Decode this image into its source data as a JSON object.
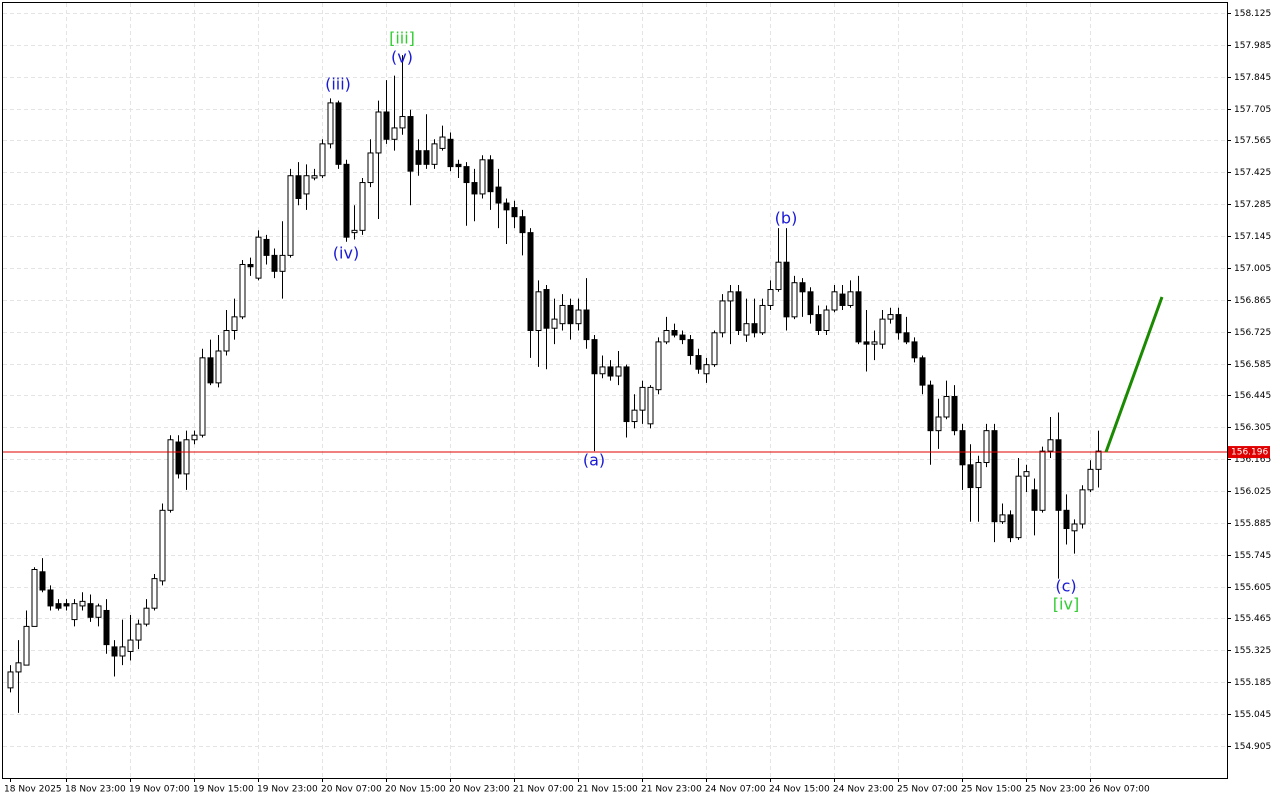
{
  "chart_data": {
    "type": "candlestick",
    "categories": [
      "18 Nov 2025",
      null,
      null,
      null,
      null,
      null,
      null,
      "18 Nov 23:00",
      null,
      null,
      null,
      null,
      null,
      null,
      null,
      "19 Nov 07:00",
      null,
      null,
      null,
      null,
      null,
      null,
      null,
      "19 Nov 15:00",
      null,
      null,
      null,
      null,
      null,
      null,
      null,
      "19 Nov 23:00",
      null,
      null,
      null,
      null,
      null,
      null,
      null,
      "20 Nov 07:00",
      null,
      null,
      null,
      null,
      null,
      null,
      null,
      "20 Nov 15:00",
      null,
      null,
      null,
      null,
      null,
      null,
      null,
      "20 Nov 23:00",
      null,
      null,
      null,
      null,
      null,
      null,
      null,
      "21 Nov 07:00",
      null,
      null,
      null,
      null,
      null,
      null,
      null,
      "21 Nov 15:00",
      null,
      null,
      null,
      null,
      null,
      null,
      null,
      "21 Nov 23:00",
      null,
      null,
      null,
      null,
      null,
      null,
      null,
      "24 Nov 07:00",
      null,
      null,
      null,
      null,
      null,
      null,
      null,
      "24 Nov 15:00",
      null,
      null,
      null,
      null,
      null,
      null,
      null,
      "24 Nov 23:00",
      null,
      null,
      null,
      null,
      null,
      null,
      null,
      "25 Nov 07:00",
      null,
      null,
      null,
      null,
      null,
      null,
      null,
      "25 Nov 15:00",
      null,
      null,
      null,
      null,
      null,
      null,
      null,
      "25 Nov 23:00",
      null,
      null,
      null,
      null,
      null,
      null,
      null,
      "26 Nov 07:00",
      null
    ],
    "open": [
      155.16,
      155.23,
      155.26,
      155.43,
      155.67,
      155.59,
      155.53,
      155.53,
      155.46,
      155.52,
      155.53,
      155.47,
      155.5,
      155.34,
      155.3,
      155.32,
      155.37,
      155.44,
      155.51,
      155.63,
      155.94,
      156.24,
      156.1,
      156.25,
      156.27,
      156.61,
      156.5,
      156.64,
      156.73,
      156.79,
      157.02,
      156.96,
      157.13,
      157.06,
      156.99,
      157.06,
      157.41,
      157.33,
      157.4,
      157.41,
      157.55,
      157.73,
      157.46,
      157.16,
      157.17,
      157.38,
      157.51,
      157.69,
      157.57,
      157.62,
      157.67,
      157.52,
      157.52,
      157.46,
      157.53,
      157.57,
      157.46,
      157.45,
      157.38,
      157.33,
      157.48,
      157.36,
      157.29,
      157.27,
      157.23,
      157.16,
      156.73,
      156.91,
      156.74,
      156.76,
      156.84,
      156.76,
      156.82,
      156.69,
      156.54,
      156.57,
      156.53,
      156.57,
      156.33,
      156.38,
      156.32,
      156.47,
      156.68,
      156.73,
      156.71,
      156.69,
      156.62,
      156.54,
      156.58,
      156.72,
      156.86,
      156.9,
      156.71,
      156.76,
      156.72,
      156.84,
      156.91,
      157.03,
      156.79,
      156.94,
      156.9,
      156.8,
      156.73,
      156.82,
      156.89,
      156.84,
      156.9,
      156.68,
      156.67,
      156.67,
      156.78,
      156.8,
      156.72,
      156.68,
      156.61,
      156.49,
      156.29,
      156.35,
      156.44,
      156.29,
      156.14,
      156.04,
      156.15,
      156.29,
      155.89,
      155.92,
      155.82,
      156.09,
      156.03,
      155.94,
      156.2,
      156.25,
      155.94,
      155.85,
      155.88,
      156.03,
      156.12
    ],
    "high": [
      155.26,
      155.37,
      155.5,
      155.69,
      155.73,
      155.61,
      155.55,
      155.55,
      155.55,
      155.58,
      155.57,
      155.53,
      155.55,
      155.37,
      155.46,
      155.48,
      155.46,
      155.55,
      155.66,
      155.97,
      156.27,
      156.27,
      156.29,
      156.29,
      156.65,
      156.69,
      156.71,
      156.82,
      156.87,
      157.04,
      157.05,
      157.17,
      157.15,
      157.09,
      157.21,
      157.44,
      157.47,
      157.46,
      157.44,
      157.57,
      157.75,
      157.74,
      157.48,
      157.28,
      157.4,
      157.57,
      157.74,
      157.83,
      157.85,
      157.94,
      157.7,
      157.57,
      157.68,
      157.57,
      157.63,
      157.6,
      157.48,
      157.47,
      157.44,
      157.5,
      157.5,
      157.44,
      157.31,
      157.3,
      157.26,
      157.18,
      156.95,
      156.93,
      156.87,
      156.89,
      156.87,
      156.87,
      156.96,
      156.71,
      156.62,
      156.6,
      156.64,
      156.58,
      156.45,
      156.51,
      156.49,
      156.7,
      156.79,
      156.76,
      156.73,
      156.71,
      156.65,
      156.61,
      156.73,
      156.89,
      156.93,
      156.93,
      156.87,
      156.87,
      156.87,
      156.95,
      157.18,
      157.18,
      156.97,
      156.96,
      156.92,
      156.84,
      156.84,
      156.93,
      156.93,
      156.95,
      156.97,
      156.82,
      156.73,
      156.82,
      156.83,
      156.83,
      156.79,
      156.7,
      156.62,
      156.51,
      156.43,
      156.51,
      156.49,
      156.32,
      156.23,
      156.18,
      156.32,
      156.32,
      155.97,
      155.94,
      156.17,
      156.14,
      156.08,
      156.22,
      156.35,
      156.37,
      156.01,
      155.9,
      156.05,
      156.16,
      156.29
    ],
    "low": [
      155.14,
      155.05,
      155.26,
      155.43,
      155.58,
      155.5,
      155.5,
      155.5,
      155.43,
      155.5,
      155.45,
      155.43,
      155.31,
      155.21,
      155.26,
      155.28,
      155.33,
      155.43,
      155.5,
      155.61,
      155.93,
      156.08,
      156.03,
      156.23,
      156.26,
      156.49,
      156.48,
      156.62,
      156.69,
      156.78,
      156.97,
      156.95,
      157.02,
      156.96,
      156.87,
      157.05,
      157.28,
      157.26,
      157.39,
      157.4,
      157.53,
      157.44,
      157.12,
      157.13,
      157.15,
      157.36,
      157.22,
      157.55,
      157.52,
      157.59,
      157.28,
      157.41,
      157.44,
      157.44,
      157.52,
      157.43,
      157.4,
      157.19,
      157.21,
      157.31,
      157.26,
      157.18,
      157.11,
      157.18,
      157.06,
      156.61,
      156.57,
      156.56,
      156.67,
      156.73,
      156.69,
      156.73,
      156.65,
      156.2,
      156.52,
      156.51,
      156.49,
      156.26,
      156.3,
      156.32,
      156.3,
      156.45,
      156.67,
      156.7,
      156.67,
      156.58,
      156.54,
      156.5,
      156.57,
      156.7,
      156.67,
      156.71,
      156.68,
      156.7,
      156.71,
      156.82,
      156.9,
      156.73,
      156.78,
      156.79,
      156.76,
      156.71,
      156.71,
      156.81,
      156.82,
      156.83,
      156.67,
      156.55,
      156.6,
      156.65,
      156.76,
      156.69,
      156.67,
      156.59,
      156.45,
      156.14,
      156.21,
      156.34,
      156.27,
      156.03,
      155.89,
      155.89,
      156.13,
      155.8,
      155.88,
      155.8,
      155.81,
      156.02,
      155.83,
      155.93,
      156.17,
      155.64,
      155.79,
      155.75,
      155.86,
      156.02,
      156.04
    ],
    "close": [
      155.23,
      155.27,
      155.43,
      155.68,
      155.59,
      155.52,
      155.51,
      155.52,
      155.53,
      155.54,
      155.47,
      155.52,
      155.35,
      155.3,
      155.34,
      155.37,
      155.44,
      155.51,
      155.64,
      155.94,
      156.25,
      156.1,
      156.25,
      156.27,
      156.61,
      156.5,
      156.64,
      156.73,
      156.79,
      157.02,
      157.01,
      157.14,
      157.06,
      156.99,
      157.06,
      157.41,
      157.31,
      157.41,
      157.41,
      157.55,
      157.73,
      157.46,
      157.14,
      157.17,
      157.38,
      157.51,
      157.69,
      157.57,
      157.62,
      157.67,
      157.43,
      157.46,
      157.46,
      157.55,
      157.58,
      157.45,
      157.45,
      157.38,
      157.33,
      157.48,
      157.34,
      157.29,
      157.26,
      157.23,
      157.16,
      156.73,
      156.9,
      156.74,
      156.78,
      156.84,
      156.76,
      156.82,
      156.69,
      156.54,
      156.57,
      156.53,
      156.57,
      156.33,
      156.38,
      156.48,
      156.48,
      156.68,
      156.73,
      156.71,
      156.69,
      156.62,
      156.56,
      156.58,
      156.72,
      156.86,
      156.9,
      156.73,
      156.76,
      156.72,
      156.84,
      156.91,
      157.03,
      156.79,
      156.94,
      156.9,
      156.8,
      156.73,
      156.82,
      156.9,
      156.84,
      156.9,
      156.68,
      156.67,
      156.68,
      156.78,
      156.8,
      156.72,
      156.68,
      156.61,
      156.49,
      156.29,
      156.35,
      156.44,
      156.29,
      156.14,
      156.04,
      156.15,
      156.29,
      155.89,
      155.92,
      155.82,
      156.09,
      156.11,
      155.94,
      156.2,
      156.25,
      155.94,
      155.86,
      155.88,
      156.03,
      156.12,
      156.2
    ],
    "bull_color": "#ffffff",
    "bear_color": "#000000",
    "ylim": [
      154.764,
      158.182
    ],
    "yticks": [
      158.125,
      157.985,
      157.845,
      157.705,
      157.565,
      157.425,
      157.285,
      157.145,
      157.005,
      156.865,
      156.725,
      156.585,
      156.445,
      156.305,
      156.165,
      156.025,
      155.885,
      155.745,
      155.605,
      155.465,
      155.325,
      155.185,
      155.045,
      154.905
    ],
    "grid": true,
    "price_line": {
      "value": 156.196,
      "color": "#e00000"
    },
    "forecast": {
      "values": [
        156.196,
        156.877
      ],
      "color": "#1a8a00"
    },
    "annotations": [
      {
        "text": "[iii]",
        "color": "#33cc33"
      },
      {
        "text": "(v)",
        "color": "#1a1ad6"
      },
      {
        "text": "(iii)",
        "color": "#1a1ad6"
      },
      {
        "text": "(iv)",
        "color": "#1a1ad6"
      },
      {
        "text": "(b)",
        "color": "#1a1ad6"
      },
      {
        "text": "(a)",
        "color": "#1a1ad6"
      },
      {
        "text": "(c)",
        "color": "#1a1ad6"
      },
      {
        "text": "[iv]",
        "color": "#33cc33"
      }
    ]
  }
}
